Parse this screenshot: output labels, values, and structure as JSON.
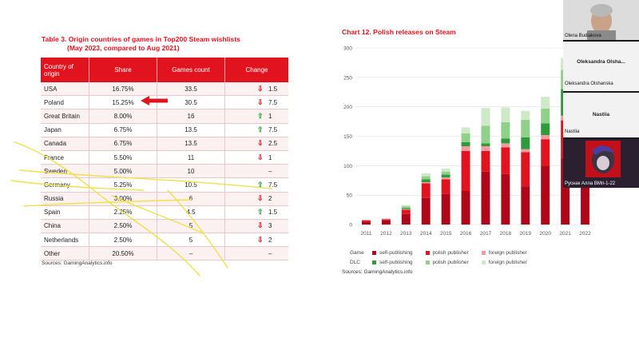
{
  "table": {
    "title_line1": "Table 3. Origin countries of games in Top200 Steam wishlists",
    "title_line2": "(May 2023, compared to Aug 2021)",
    "headers": [
      "Country of origin",
      "Share",
      "Games count",
      "Change"
    ],
    "rows": [
      {
        "country": "USA",
        "share": "16.75%",
        "count": "33.5",
        "dir": "down",
        "change": "1.5"
      },
      {
        "country": "Poland",
        "share": "15.25%",
        "count": "30.5",
        "dir": "down",
        "change": "7.5"
      },
      {
        "country": "Great Britain",
        "share": "8.00%",
        "count": "16",
        "dir": "up",
        "change": "1"
      },
      {
        "country": "Japan",
        "share": "6.75%",
        "count": "13.5",
        "dir": "up",
        "change": "7.5"
      },
      {
        "country": "Canada",
        "share": "6.75%",
        "count": "13.5",
        "dir": "down",
        "change": "2.5"
      },
      {
        "country": "France",
        "share": "5.50%",
        "count": "11",
        "dir": "down",
        "change": "1"
      },
      {
        "country": "Sweden",
        "share": "5.00%",
        "count": "10",
        "dir": "none",
        "change": "–"
      },
      {
        "country": "Germany",
        "share": "5.25%",
        "count": "10.5",
        "dir": "up",
        "change": "7.5"
      },
      {
        "country": "Russia",
        "share": "3.00%",
        "count": "6",
        "dir": "down",
        "change": "2"
      },
      {
        "country": "Spain",
        "share": "2.25%",
        "count": "4.5",
        "dir": "up",
        "change": "1.5"
      },
      {
        "country": "China",
        "share": "2.50%",
        "count": "5",
        "dir": "down",
        "change": "3"
      },
      {
        "country": "Netherlands",
        "share": "2.50%",
        "count": "5",
        "dir": "down",
        "change": "2"
      },
      {
        "country": "Other",
        "share": "20.50%",
        "count": "–",
        "dir": "none",
        "change": "–"
      }
    ],
    "sources": "Sources: GamingAnalytics.info"
  },
  "chart_title": "Chart 12. Polish releases on Steam",
  "chart_data": {
    "type": "bar",
    "stacked": true,
    "title": "Chart 12. Polish releases on Steam",
    "categories": [
      "2011",
      "2012",
      "2013",
      "2014",
      "2015",
      "2016",
      "2017",
      "2018",
      "2019",
      "2020",
      "2021",
      "2022"
    ],
    "ylim": [
      0,
      300
    ],
    "yticks": [
      0,
      50,
      100,
      150,
      200,
      250,
      300
    ],
    "grid": true,
    "legend_position": "bottom",
    "series": [
      {
        "name": "Game self-publishing",
        "color": "#b0061a",
        "values": [
          5,
          7,
          18,
          45,
          52,
          57,
          90,
          86,
          65,
          100,
          112,
          80
        ]
      },
      {
        "name": "Game polish publisher",
        "color": "#e0131f",
        "values": [
          2,
          2,
          7,
          25,
          25,
          68,
          35,
          45,
          58,
          45,
          65,
          58
        ]
      },
      {
        "name": "Game foreign publisher",
        "color": "#f39aa0",
        "values": [
          1,
          1,
          1,
          2,
          3,
          8,
          8,
          7,
          5,
          7,
          8,
          7
        ]
      },
      {
        "name": "DLC self-publishing",
        "color": "#2e9a3c",
        "values": [
          0,
          0,
          2,
          5,
          5,
          7,
          5,
          8,
          20,
          20,
          45,
          0
        ]
      },
      {
        "name": "DLC polish publisher",
        "color": "#8fd08a",
        "values": [
          0,
          0,
          3,
          5,
          5,
          15,
          30,
          28,
          30,
          25,
          33,
          0
        ]
      },
      {
        "name": "DLC foreign publisher",
        "color": "#cfe8c8",
        "values": [
          0,
          0,
          2,
          5,
          5,
          10,
          30,
          25,
          15,
          20,
          20,
          0
        ]
      }
    ],
    "sources": "Sources: GamingAnalytics.info"
  },
  "legend": {
    "game_label": "Game",
    "dlc_label": "DLC",
    "items_game": [
      {
        "label": "self-publishing",
        "color": "#b0061a"
      },
      {
        "label": "polish publisher",
        "color": "#e0131f"
      },
      {
        "label": "foreign publisher",
        "color": "#f39aa0"
      }
    ],
    "items_dlc": [
      {
        "label": "self-publishing",
        "color": "#2e9a3c"
      },
      {
        "label": "polish publisher",
        "color": "#8fd08a"
      },
      {
        "label": "foreign publisher",
        "color": "#cfe8c8"
      }
    ]
  },
  "participants": [
    {
      "name": "Olena Budiakova",
      "center": ""
    },
    {
      "name": "Oleksandra Olshanska",
      "center": "Oleksandra Olsha..."
    },
    {
      "name": "Nastiia",
      "center": "Nastiia"
    },
    {
      "name": "Руснак Алла ВМп-1-22",
      "center": ""
    }
  ]
}
